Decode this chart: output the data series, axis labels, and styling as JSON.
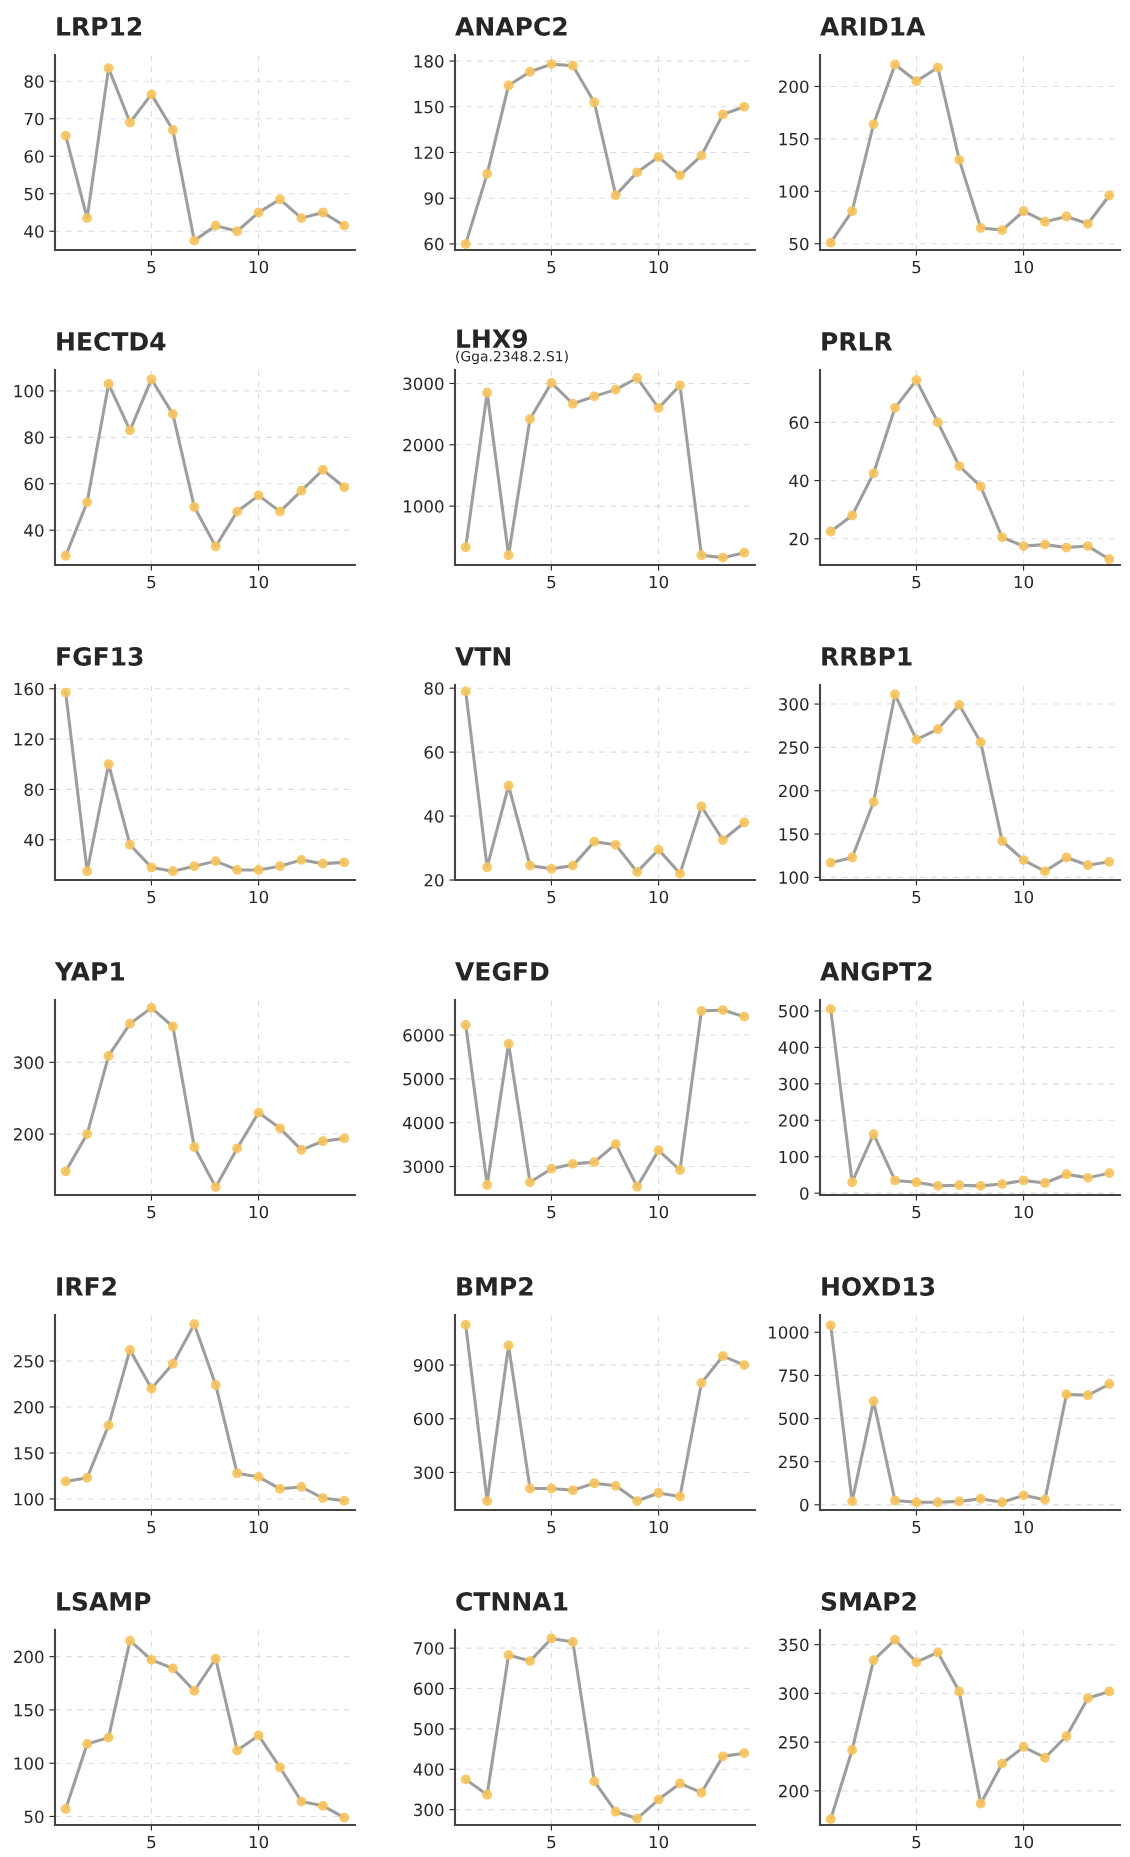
{
  "chart_data": [
    {
      "type": "line",
      "title": "LRP12",
      "x": [
        1,
        2,
        3,
        4,
        5,
        6,
        7,
        8,
        9,
        10,
        11,
        12,
        13,
        14
      ],
      "xlim": [
        0.5,
        14.5
      ],
      "xticks": [
        5,
        10
      ],
      "ylim": [
        35,
        87
      ],
      "yticks": [
        40,
        50,
        60,
        70,
        80
      ],
      "grid": true,
      "marker": "circle",
      "line_style": "solid",
      "series": [
        {
          "color": "#9e9e9e",
          "colors": [
            "#f6c35b",
            "#f6c35b",
            "#f6c35b",
            "#f6c35b",
            "#f6c35b",
            "#f6c35b",
            "#f6c35b",
            "#f6c35b",
            "#f6c35b",
            "#f6c35b",
            "#f6c35b",
            "#f6c35b",
            "#f6c35b",
            "#f6c35b"
          ],
          "values": [
            65.5,
            43.5,
            83.5,
            69,
            76.5,
            67,
            37.5,
            41.5,
            40,
            45,
            48.5,
            43.5,
            45,
            41.5
          ]
        }
      ]
    },
    {
      "type": "line",
      "title": "ANAPC2",
      "x": [
        1,
        2,
        3,
        4,
        5,
        6,
        7,
        8,
        9,
        10,
        11,
        12,
        13,
        14
      ],
      "xlim": [
        0.5,
        14.5
      ],
      "xticks": [
        5,
        10
      ],
      "ylim": [
        56,
        184
      ],
      "yticks": [
        60,
        90,
        120,
        150,
        180
      ],
      "grid": true,
      "marker": "circle",
      "line_style": "solid",
      "series": [
        {
          "color": "#9e9e9e",
          "colors": [
            "#f6c35b",
            "#f6c35b",
            "#f6c35b",
            "#f6c35b",
            "#f6c35b",
            "#f6c35b",
            "#f6c35b",
            "#f6c35b",
            "#f6c35b",
            "#f6c35b",
            "#f6c35b",
            "#f6c35b",
            "#f6c35b",
            "#f6c35b"
          ],
          "values": [
            60,
            106,
            164,
            173,
            178,
            177,
            153,
            92,
            107,
            117,
            105,
            118,
            145,
            150
          ]
        }
      ]
    },
    {
      "type": "line",
      "title": "ARID1A",
      "x": [
        1,
        2,
        3,
        4,
        5,
        6,
        7,
        8,
        9,
        10,
        11,
        12,
        13,
        14
      ],
      "xlim": [
        0.5,
        14.5
      ],
      "xticks": [
        5,
        10
      ],
      "ylim": [
        44,
        230
      ],
      "yticks": [
        50,
        100,
        150,
        200
      ],
      "grid": true,
      "marker": "circle",
      "line_style": "solid",
      "series": [
        {
          "color": "#9e9e9e",
          "colors": [
            "#f6c35b",
            "#f6c35b",
            "#f6c35b",
            "#f6c35b",
            "#f6c35b",
            "#f6c35b",
            "#f6c35b",
            "#f6c35b",
            "#f6c35b",
            "#f6c35b",
            "#f6c35b",
            "#f6c35b",
            "#f6c35b",
            "#f6c35b"
          ],
          "values": [
            51,
            81,
            164,
            221,
            205,
            218,
            130,
            65,
            63,
            81,
            71,
            76,
            69,
            96
          ]
        }
      ]
    },
    {
      "type": "line",
      "title": "HECTD4",
      "x": [
        1,
        2,
        3,
        4,
        5,
        6,
        7,
        8,
        9,
        10,
        11,
        12,
        13,
        14
      ],
      "xlim": [
        0.5,
        14.5
      ],
      "xticks": [
        5,
        10
      ],
      "ylim": [
        25,
        109
      ],
      "yticks": [
        40,
        60,
        80,
        100
      ],
      "grid": true,
      "marker": "circle",
      "line_style": "solid",
      "series": [
        {
          "color": "#9e9e9e",
          "colors": [
            "#f6c35b",
            "#f6c35b",
            "#f6c35b",
            "#f6c35b",
            "#f6c35b",
            "#f6c35b",
            "#f6c35b",
            "#f6c35b",
            "#f6c35b",
            "#f6c35b",
            "#f6c35b",
            "#f6c35b",
            "#f6c35b",
            "#f6c35b"
          ],
          "values": [
            29,
            52,
            103,
            83,
            105,
            90,
            50,
            33,
            48,
            55,
            48,
            57,
            66,
            58.5
          ]
        }
      ]
    },
    {
      "type": "line",
      "title": "LHX9",
      "subtitle": "(Gga.2348.2.S1)",
      "x": [
        1,
        2,
        3,
        4,
        5,
        6,
        7,
        8,
        9,
        10,
        11,
        12,
        13,
        14
      ],
      "xlim": [
        0.5,
        14.5
      ],
      "xticks": [
        5,
        10
      ],
      "ylim": [
        40,
        3220
      ],
      "yticks": [
        1000,
        2000,
        3000
      ],
      "grid": true,
      "marker": "circle",
      "line_style": "solid",
      "series": [
        {
          "color": "#9e9e9e",
          "colors": [
            "#f6c35b",
            "#f6c35b",
            "#f6c35b",
            "#f6c35b",
            "#f6c35b",
            "#f6c35b",
            "#f6c35b",
            "#f6c35b",
            "#f6c35b",
            "#f6c35b",
            "#f6c35b",
            "#f6c35b",
            "#f6c35b",
            "#f6c35b"
          ],
          "values": [
            330,
            2850,
            200,
            2420,
            3010,
            2670,
            2790,
            2900,
            3090,
            2600,
            2970,
            200,
            160,
            240
          ]
        }
      ]
    },
    {
      "type": "line",
      "title": "PRLR",
      "x": [
        1,
        2,
        3,
        4,
        5,
        6,
        7,
        8,
        9,
        10,
        11,
        12,
        13,
        14
      ],
      "xlim": [
        0.5,
        14.5
      ],
      "xticks": [
        5,
        10
      ],
      "ylim": [
        11,
        78
      ],
      "yticks": [
        20,
        40,
        60
      ],
      "grid": true,
      "marker": "circle",
      "line_style": "solid",
      "series": [
        {
          "color": "#9e9e9e",
          "colors": [
            "#f6c35b",
            "#f6c35b",
            "#f6c35b",
            "#f6c35b",
            "#f6c35b",
            "#f6c35b",
            "#f6c35b",
            "#f6c35b",
            "#f6c35b",
            "#f6c35b",
            "#f6c35b",
            "#f6c35b",
            "#f6c35b",
            "#f6c35b"
          ],
          "values": [
            22.5,
            28,
            42.5,
            65,
            74.5,
            60,
            45,
            38,
            20.5,
            17.5,
            18,
            17,
            17.5,
            13
          ]
        }
      ]
    },
    {
      "type": "line",
      "title": "FGF13",
      "x": [
        1,
        2,
        3,
        4,
        5,
        6,
        7,
        8,
        9,
        10,
        11,
        12,
        13,
        14
      ],
      "xlim": [
        0.5,
        14.5
      ],
      "xticks": [
        5,
        10
      ],
      "ylim": [
        8,
        163
      ],
      "yticks": [
        40,
        80,
        120,
        160
      ],
      "grid": true,
      "marker": "circle",
      "line_style": "solid",
      "series": [
        {
          "color": "#9e9e9e",
          "colors": [
            "#f6c35b",
            "#f6c35b",
            "#f6c35b",
            "#f6c35b",
            "#f6c35b",
            "#f6c35b",
            "#f6c35b",
            "#f6c35b",
            "#f6c35b",
            "#f6c35b",
            "#f6c35b",
            "#f6c35b",
            "#f6c35b",
            "#f6c35b"
          ],
          "values": [
            157,
            15,
            100,
            36,
            18,
            15,
            19,
            23,
            16,
            16,
            19,
            24,
            21,
            22
          ]
        }
      ]
    },
    {
      "type": "line",
      "title": "VTN",
      "x": [
        1,
        2,
        3,
        4,
        5,
        6,
        7,
        8,
        9,
        10,
        11,
        12,
        13,
        14
      ],
      "xlim": [
        0.5,
        14.5
      ],
      "xticks": [
        5,
        10
      ],
      "ylim": [
        20,
        81
      ],
      "yticks": [
        20,
        40,
        60,
        80
      ],
      "grid": true,
      "marker": "circle",
      "line_style": "solid",
      "series": [
        {
          "color": "#9e9e9e",
          "colors": [
            "#f6c35b",
            "#f6c35b",
            "#f6c35b",
            "#f6c35b",
            "#f6c35b",
            "#f6c35b",
            "#f6c35b",
            "#f6c35b",
            "#f6c35b",
            "#f6c35b",
            "#f6c35b",
            "#f6c35b",
            "#f6c35b",
            "#f6c35b"
          ],
          "values": [
            79,
            24,
            49.5,
            24.5,
            23.5,
            24.5,
            32,
            31,
            22.5,
            29.5,
            22,
            43,
            32.5,
            38
          ]
        }
      ]
    },
    {
      "type": "line",
      "title": "RRBP1",
      "x": [
        1,
        2,
        3,
        4,
        5,
        6,
        7,
        8,
        9,
        10,
        11,
        12,
        13,
        14
      ],
      "xlim": [
        0.5,
        14.5
      ],
      "xticks": [
        5,
        10
      ],
      "ylim": [
        97,
        322
      ],
      "yticks": [
        100,
        150,
        200,
        250,
        300
      ],
      "grid": true,
      "marker": "circle",
      "line_style": "solid",
      "series": [
        {
          "color": "#9e9e9e",
          "colors": [
            "#f6c35b",
            "#f6c35b",
            "#f6c35b",
            "#f6c35b",
            "#f6c35b",
            "#f6c35b",
            "#f6c35b",
            "#f6c35b",
            "#f6c35b",
            "#f6c35b",
            "#f6c35b",
            "#f6c35b",
            "#f6c35b",
            "#f6c35b"
          ],
          "values": [
            117,
            123,
            187,
            311,
            259,
            271,
            299,
            256,
            142,
            120,
            107,
            123,
            114,
            118
          ]
        }
      ]
    },
    {
      "type": "line",
      "title": "YAP1",
      "x": [
        1,
        2,
        3,
        4,
        5,
        6,
        7,
        8,
        9,
        10,
        11,
        12,
        13,
        14
      ],
      "xlim": [
        0.5,
        14.5
      ],
      "xticks": [
        5,
        10
      ],
      "ylim": [
        115,
        387
      ],
      "yticks": [
        200,
        300
      ],
      "grid": true,
      "marker": "circle",
      "line_style": "solid",
      "series": [
        {
          "color": "#9e9e9e",
          "colors": [
            "#f6c35b",
            "#f6c35b",
            "#f6c35b",
            "#f6c35b",
            "#f6c35b",
            "#f6c35b",
            "#f6c35b",
            "#f6c35b",
            "#f6c35b",
            "#f6c35b",
            "#f6c35b",
            "#f6c35b",
            "#f6c35b",
            "#f6c35b"
          ],
          "values": [
            148,
            200,
            309,
            354,
            376,
            350,
            182,
            126,
            180,
            230,
            208,
            178,
            190,
            194
          ]
        }
      ]
    },
    {
      "type": "line",
      "title": "VEGFD",
      "x": [
        1,
        2,
        3,
        4,
        5,
        6,
        7,
        8,
        9,
        10,
        11,
        12,
        13,
        14
      ],
      "xlim": [
        0.5,
        14.5
      ],
      "xticks": [
        5,
        10
      ],
      "ylim": [
        2350,
        6800
      ],
      "yticks": [
        3000,
        4000,
        5000,
        6000
      ],
      "grid": true,
      "marker": "circle",
      "line_style": "solid",
      "series": [
        {
          "color": "#9e9e9e",
          "colors": [
            "#f6c35b",
            "#f6c35b",
            "#f6c35b",
            "#f6c35b",
            "#f6c35b",
            "#f6c35b",
            "#f6c35b",
            "#f6c35b",
            "#f6c35b",
            "#f6c35b",
            "#f6c35b",
            "#f6c35b",
            "#f6c35b",
            "#f6c35b"
          ],
          "values": [
            6230,
            2580,
            5800,
            2640,
            2950,
            3060,
            3100,
            3510,
            2540,
            3370,
            2920,
            6550,
            6570,
            6420
          ]
        }
      ]
    },
    {
      "type": "line",
      "title": "ANGPT2",
      "x": [
        1,
        2,
        3,
        4,
        5,
        6,
        7,
        8,
        9,
        10,
        11,
        12,
        13,
        14
      ],
      "xlim": [
        0.5,
        14.5
      ],
      "xticks": [
        5,
        10
      ],
      "ylim": [
        -5,
        530
      ],
      "yticks": [
        0,
        100,
        200,
        300,
        400,
        500
      ],
      "grid": true,
      "marker": "circle",
      "line_style": "solid",
      "series": [
        {
          "color": "#9e9e9e",
          "colors": [
            "#f6c35b",
            "#f6c35b",
            "#f6c35b",
            "#f6c35b",
            "#f6c35b",
            "#f6c35b",
            "#f6c35b",
            "#f6c35b",
            "#f6c35b",
            "#f6c35b",
            "#f6c35b",
            "#f6c35b",
            "#f6c35b",
            "#f6c35b"
          ],
          "values": [
            505,
            30,
            162,
            35,
            30,
            20,
            22,
            20,
            25,
            35,
            28,
            52,
            42,
            55
          ]
        }
      ]
    },
    {
      "type": "line",
      "title": "IRF2",
      "x": [
        1,
        2,
        3,
        4,
        5,
        6,
        7,
        8,
        9,
        10,
        11,
        12,
        13,
        14
      ],
      "xlim": [
        0.5,
        14.5
      ],
      "xticks": [
        5,
        10
      ],
      "ylim": [
        88,
        300
      ],
      "yticks": [
        100,
        150,
        200,
        250
      ],
      "grid": true,
      "marker": "circle",
      "line_style": "solid",
      "series": [
        {
          "color": "#9e9e9e",
          "colors": [
            "#f6c35b",
            "#f6c35b",
            "#f6c35b",
            "#f6c35b",
            "#f6c35b",
            "#f6c35b",
            "#f6c35b",
            "#f6c35b",
            "#f6c35b",
            "#f6c35b",
            "#f6c35b",
            "#f6c35b",
            "#f6c35b",
            "#f6c35b"
          ],
          "values": [
            119,
            123,
            180,
            262,
            220,
            247,
            290,
            224,
            128,
            124,
            111,
            113,
            101,
            98
          ]
        }
      ]
    },
    {
      "type": "line",
      "title": "BMP2",
      "x": [
        1,
        2,
        3,
        4,
        5,
        6,
        7,
        8,
        9,
        10,
        11,
        12,
        13,
        14
      ],
      "xlim": [
        0.5,
        14.5
      ],
      "xticks": [
        5,
        10
      ],
      "ylim": [
        90,
        1180
      ],
      "yticks": [
        300,
        600,
        900
      ],
      "grid": true,
      "marker": "circle",
      "line_style": "solid",
      "series": [
        {
          "color": "#9e9e9e",
          "colors": [
            "#f6c35b",
            "#f6c35b",
            "#f6c35b",
            "#f6c35b",
            "#f6c35b",
            "#f6c35b",
            "#f6c35b",
            "#f6c35b",
            "#f6c35b",
            "#f6c35b",
            "#f6c35b",
            "#f6c35b",
            "#f6c35b",
            "#f6c35b"
          ],
          "values": [
            1125,
            140,
            1010,
            210,
            210,
            200,
            240,
            225,
            140,
            185,
            165,
            800,
            950,
            900
          ]
        }
      ]
    },
    {
      "type": "line",
      "title": "HOXD13",
      "x": [
        1,
        2,
        3,
        4,
        5,
        6,
        7,
        8,
        9,
        10,
        11,
        12,
        13,
        14
      ],
      "xlim": [
        0.5,
        14.5
      ],
      "xticks": [
        5,
        10
      ],
      "ylim": [
        -30,
        1100
      ],
      "yticks": [
        0,
        250,
        500,
        750,
        1000
      ],
      "grid": true,
      "marker": "circle",
      "line_style": "solid",
      "series": [
        {
          "color": "#9e9e9e",
          "colors": [
            "#f6c35b",
            "#f6c35b",
            "#f6c35b",
            "#f6c35b",
            "#f6c35b",
            "#f6c35b",
            "#f6c35b",
            "#f6c35b",
            "#f6c35b",
            "#f6c35b",
            "#f6c35b",
            "#f6c35b",
            "#f6c35b",
            "#f6c35b"
          ],
          "values": [
            1040,
            20,
            600,
            25,
            15,
            15,
            20,
            35,
            15,
            55,
            30,
            640,
            635,
            700
          ]
        }
      ]
    },
    {
      "type": "line",
      "title": "LSAMP",
      "x": [
        1,
        2,
        3,
        4,
        5,
        6,
        7,
        8,
        9,
        10,
        11,
        12,
        13,
        14
      ],
      "xlim": [
        0.5,
        14.5
      ],
      "xticks": [
        5,
        10
      ],
      "ylim": [
        42,
        225
      ],
      "yticks": [
        50,
        100,
        150,
        200
      ],
      "grid": true,
      "marker": "circle",
      "line_style": "solid",
      "series": [
        {
          "color": "#9e9e9e",
          "colors": [
            "#f6c35b",
            "#f6c35b",
            "#f6c35b",
            "#f6c35b",
            "#f6c35b",
            "#f6c35b",
            "#f6c35b",
            "#f6c35b",
            "#f6c35b",
            "#f6c35b",
            "#f6c35b",
            "#f6c35b",
            "#f6c35b",
            "#f6c35b"
          ],
          "values": [
            57,
            118,
            124,
            215,
            197,
            189,
            168,
            198,
            112,
            126,
            96,
            64,
            60,
            49
          ]
        }
      ]
    },
    {
      "type": "line",
      "title": "CTNNA1",
      "x": [
        1,
        2,
        3,
        4,
        5,
        6,
        7,
        8,
        9,
        10,
        11,
        12,
        13,
        14
      ],
      "xlim": [
        0.5,
        14.5
      ],
      "xticks": [
        5,
        10
      ],
      "ylim": [
        262,
        745
      ],
      "yticks": [
        300,
        400,
        500,
        600,
        700
      ],
      "grid": true,
      "marker": "circle",
      "line_style": "solid",
      "series": [
        {
          "color": "#9e9e9e",
          "colors": [
            "#f6c35b",
            "#f6c35b",
            "#f6c35b",
            "#f6c35b",
            "#f6c35b",
            "#f6c35b",
            "#f6c35b",
            "#f6c35b",
            "#f6c35b",
            "#f6c35b",
            "#f6c35b",
            "#f6c35b",
            "#f6c35b",
            "#f6c35b"
          ],
          "values": [
            375,
            337,
            683,
            668,
            724,
            715,
            370,
            295,
            278,
            325,
            365,
            342,
            432,
            440
          ]
        }
      ]
    },
    {
      "type": "line",
      "title": "SMAP2",
      "x": [
        1,
        2,
        3,
        4,
        5,
        6,
        7,
        8,
        9,
        10,
        11,
        12,
        13,
        14
      ],
      "xlim": [
        0.5,
        14.5
      ],
      "xticks": [
        5,
        10
      ],
      "ylim": [
        165,
        365
      ],
      "yticks": [
        200,
        250,
        300,
        350
      ],
      "grid": true,
      "marker": "circle",
      "line_style": "solid",
      "series": [
        {
          "color": "#9e9e9e",
          "colors": [
            "#f6c35b",
            "#f6c35b",
            "#f6c35b",
            "#f6c35b",
            "#f6c35b",
            "#f6c35b",
            "#f6c35b",
            "#f6c35b",
            "#f6c35b",
            "#f6c35b",
            "#f6c35b",
            "#f6c35b",
            "#f6c35b",
            "#f6c35b"
          ],
          "values": [
            171,
            242,
            334,
            355,
            332,
            342,
            302,
            187,
            228,
            245,
            234,
            256,
            295,
            302
          ]
        }
      ]
    }
  ]
}
